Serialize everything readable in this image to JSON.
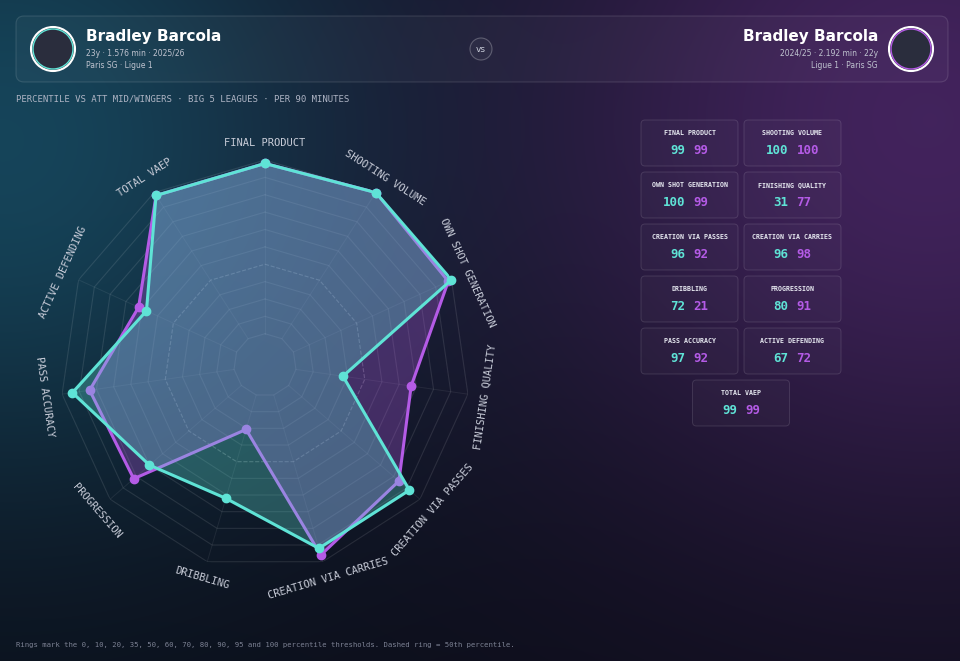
{
  "header": {
    "left": {
      "player": "Bradley Barcola",
      "details": "23y · 1.576 min · 2025/26",
      "club": "Paris SG · Ligue 1"
    },
    "right": {
      "player": "Bradley Barcola",
      "details": "2024/25 · 2.192 min · 22y",
      "club": "Ligue 1 · Paris SG"
    },
    "vs": "vs"
  },
  "subtitle": "PERCENTILE VS ATT MID/WINGERS · BIG 5 LEAGUES · PER 90 MINUTES",
  "footnote": "Rings mark the 0, 10, 20, 35, 50, 60, 70, 80, 90, 95 and 100 percentile thresholds. Dashed ring = 50th percentile.",
  "chart_data": {
    "type": "radar",
    "categories": [
      "FINAL PRODUCT",
      "SHOOTING VOLUME",
      "OWN SHOT GENERATION",
      "FINISHING QUALITY",
      "CREATION VIA PASSES",
      "CREATION VIA CARRIES",
      "DRIBBLING",
      "PROGRESSION",
      "PASS ACCURACY",
      "ACTIVE DEFENDING",
      "TOTAL VAEP"
    ],
    "series": [
      {
        "color": "#5fe3d6",
        "values": [
          99,
          100,
          100,
          31,
          96,
          96,
          72,
          80,
          97,
          67,
          99
        ]
      },
      {
        "color": "#b45be6",
        "values": [
          99,
          100,
          99,
          77,
          92,
          98,
          21,
          91,
          92,
          72,
          99
        ]
      }
    ],
    "ylim": [
      0,
      100
    ],
    "rings": [
      0,
      10,
      20,
      35,
      50,
      60,
      70,
      80,
      90,
      95,
      100
    ],
    "dashed_ring": 50,
    "grid": true,
    "tick_labels": false
  }
}
